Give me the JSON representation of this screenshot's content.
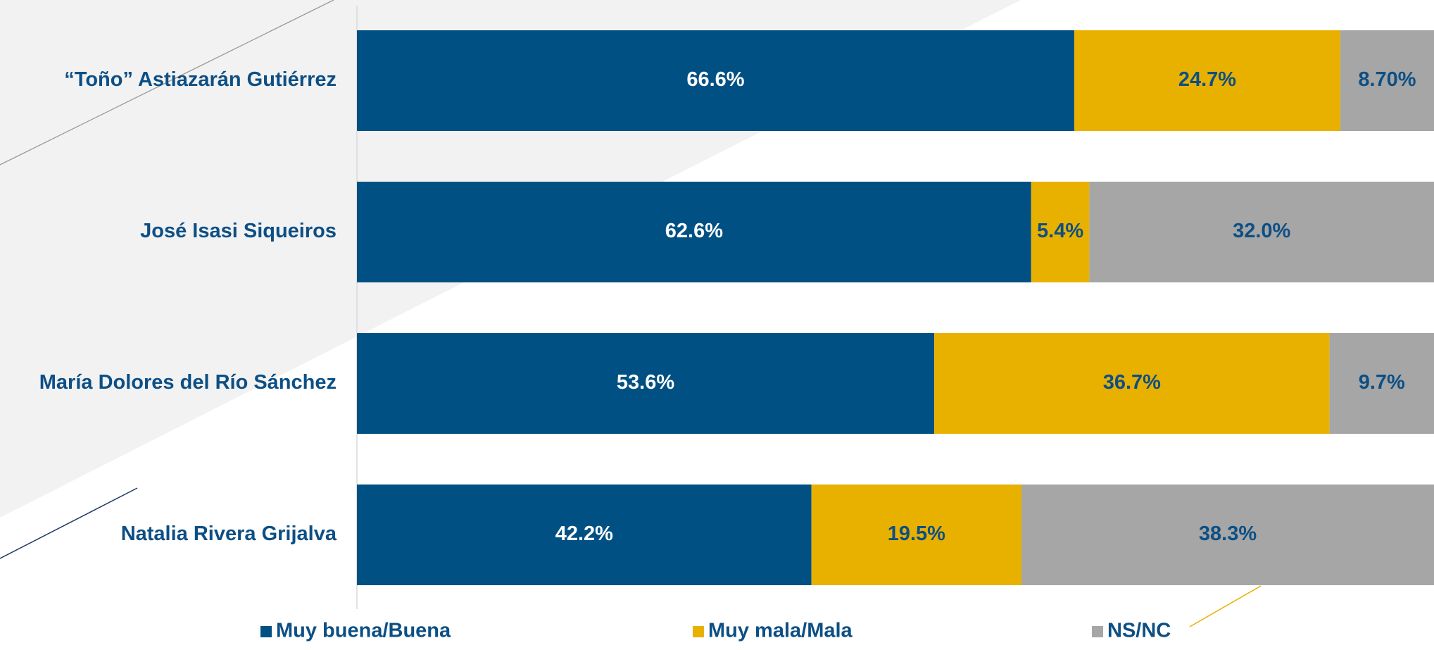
{
  "chart_data": {
    "type": "stacked_barh",
    "categories": [
      "“Toño” Astiazarán Gutiérrez",
      "José Isasi Siqueiros",
      "María Dolores del Río Sánchez",
      "Natalia Rivera Grijalva"
    ],
    "series": [
      {
        "name": "Muy buena/Buena",
        "color": "#005083",
        "label_color": "#ffffff",
        "values": [
          66.6,
          62.6,
          53.6,
          42.2
        ],
        "value_labels": [
          "66.6%",
          "62.6%",
          "53.6%",
          "42.2%"
        ]
      },
      {
        "name": "Muy mala/Mala",
        "color": "#e8b100",
        "label_color": "#0d4f84",
        "values": [
          24.7,
          5.4,
          36.7,
          19.5
        ],
        "value_labels": [
          "24.7%",
          "5.4%",
          "36.7%",
          "19.5%"
        ]
      },
      {
        "name": "NS/NC",
        "color": "#a6a6a6",
        "label_color": "#0d4f84",
        "values": [
          8.7,
          32.0,
          9.7,
          38.3
        ],
        "value_labels": [
          "8.70%",
          "32.0%",
          "9.7%",
          "38.3%"
        ]
      }
    ],
    "xlim": [
      0,
      100
    ],
    "legend": "bottom"
  }
}
